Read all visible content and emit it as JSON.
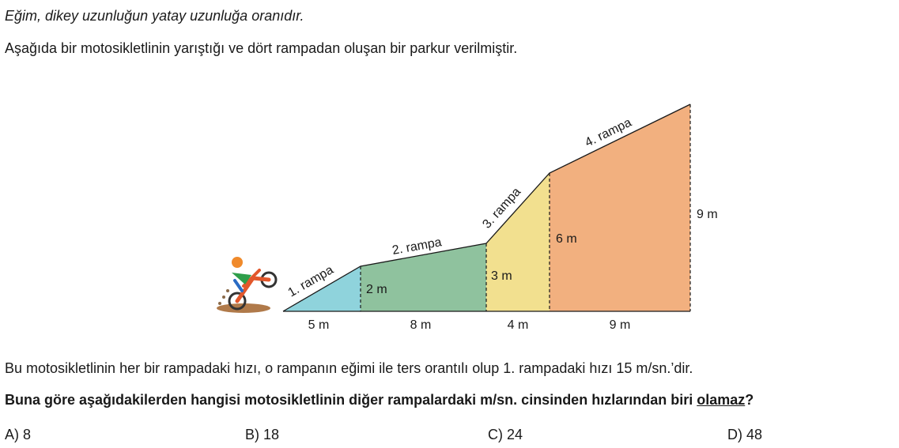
{
  "intro": "Eğim, dikey uzunluğun yatay uzunluğa oranıdır.",
  "lead": "Aşağıda bir motosikletlinin yarıştığı ve dört rampadan oluşan bir parkur verilmiştir.",
  "figure": {
    "ramps": [
      {
        "label": "1. rampa",
        "width": "5 m",
        "height": "2 m",
        "color": "#8fd3dc"
      },
      {
        "label": "2. rampa",
        "width": "8 m",
        "height": "3 m",
        "color": "#8fc29e"
      },
      {
        "label": "3. rampa",
        "width": "4 m",
        "height": "6 m",
        "color": "#f2e08f"
      },
      {
        "label": "4. rampa",
        "width": "9 m",
        "height": "9 m",
        "color": "#f2b07f"
      }
    ]
  },
  "info": "Bu motosikletlinin her bir rampadaki hızı, o rampanın eğimi ile ters orantılı olup 1. rampadaki hızı 15 m/sn.’dir.",
  "question": {
    "prefix": "Buna göre aşağıdakilerden hangisi motosikletlinin diğer rampalardaki m/sn. cinsinden hızlarından biri ",
    "emphasis": "olamaz",
    "suffix": "?"
  },
  "options": [
    {
      "letter": "A)",
      "value": "8"
    },
    {
      "letter": "B)",
      "value": "18"
    },
    {
      "letter": "C)",
      "value": "24"
    },
    {
      "letter": "D)",
      "value": "48"
    }
  ]
}
